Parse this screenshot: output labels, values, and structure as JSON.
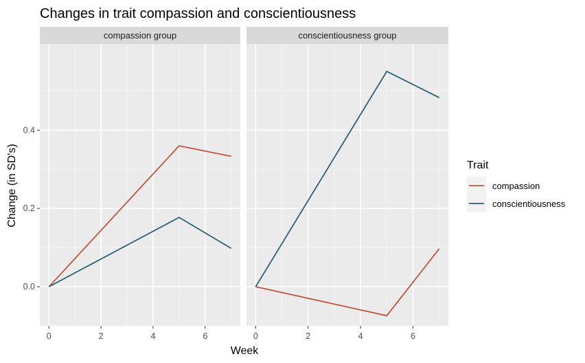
{
  "chart_data": {
    "type": "line",
    "title": "Changes in trait compassion and conscientiousness",
    "xlabel": "Week",
    "ylabel": "Change (in SD's)",
    "xlim": [
      -0.35,
      7.35
    ],
    "ylim": [
      -0.1,
      0.62
    ],
    "x_ticks": [
      0,
      2,
      4,
      6
    ],
    "y_ticks": [
      0.0,
      0.2,
      0.4
    ],
    "x_tick_labels": [
      "0",
      "2",
      "4",
      "6"
    ],
    "y_tick_labels": [
      "0.0",
      "0.2",
      "0.4"
    ],
    "grid": true,
    "legend": {
      "title": "Trait",
      "placement": "right",
      "entries": [
        {
          "name": "compassion",
          "color": "#c1553b"
        },
        {
          "name": "conscientiousness",
          "color": "#2c5f78"
        }
      ]
    },
    "facets": [
      {
        "label": "compassion group",
        "series": [
          {
            "name": "compassion",
            "color": "#c1553b",
            "x": [
              0,
              5,
              7
            ],
            "y": [
              0.0,
              0.36,
              0.333
            ]
          },
          {
            "name": "conscientiousness",
            "color": "#2c5f78",
            "x": [
              0,
              5,
              7
            ],
            "y": [
              0.0,
              0.177,
              0.098
            ]
          }
        ]
      },
      {
        "label": "conscientiousness group",
        "series": [
          {
            "name": "compassion",
            "color": "#c1553b",
            "x": [
              0,
              5,
              7
            ],
            "y": [
              0.0,
              -0.074,
              0.097
            ]
          },
          {
            "name": "conscientiousness",
            "color": "#2c5f78",
            "x": [
              0,
              5,
              7
            ],
            "y": [
              0.0,
              0.55,
              0.483
            ]
          }
        ]
      }
    ]
  }
}
